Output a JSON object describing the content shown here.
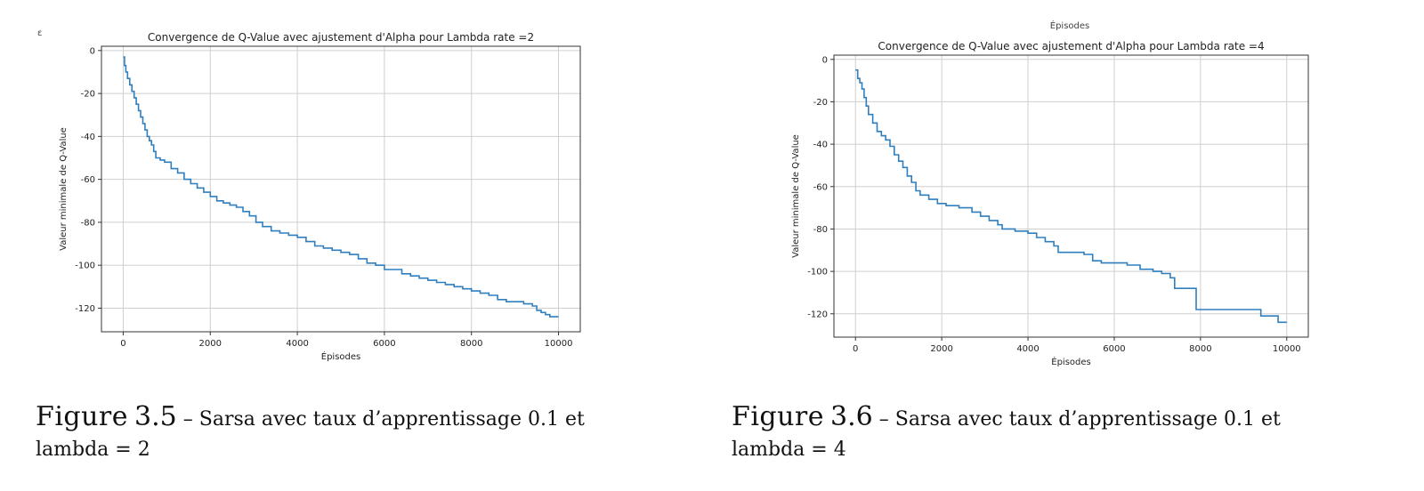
{
  "chart_data": [
    {
      "type": "line",
      "title": "Convergence de Q-Value avec ajustement d'Alpha pour Lambda rate =2",
      "xlabel": "Épisodes",
      "ylabel": "Valeur minimale de Q-Value",
      "xlim": [
        -500,
        10500
      ],
      "ylim": [
        -131,
        2
      ],
      "xticks": [
        0,
        2000,
        4000,
        6000,
        8000,
        10000
      ],
      "yticks": [
        0,
        -20,
        -40,
        -60,
        -80,
        -100,
        -120
      ],
      "grid": true,
      "series_color": "#2f7fbf",
      "series": [
        {
          "x": [
            0,
            30,
            60,
            100,
            150,
            200,
            250,
            300,
            350,
            400,
            450,
            500,
            550,
            600,
            650,
            700,
            750,
            850,
            950,
            1100,
            1250,
            1400,
            1550,
            1700,
            1850,
            2000,
            2150,
            2300,
            2450,
            2600,
            2750,
            2900,
            3050,
            3200,
            3400,
            3600,
            3800,
            4000,
            4200,
            4400,
            4600,
            4800,
            5000,
            5200,
            5400,
            5600,
            5800,
            6000,
            6200,
            6400,
            6600,
            6800,
            7000,
            7200,
            7400,
            7600,
            7800,
            8000,
            8200,
            8400,
            8600,
            8800,
            9000,
            9200,
            9400,
            9500,
            9600,
            9700,
            9800,
            10000
          ],
          "y": [
            -3,
            -7,
            -10,
            -13,
            -16,
            -19,
            -22,
            -25,
            -28,
            -31,
            -34,
            -37,
            -40,
            -42,
            -44,
            -47,
            -50,
            -51,
            -52,
            -55,
            -57,
            -60,
            -62,
            -64,
            -66,
            -68,
            -70,
            -71,
            -72,
            -73,
            -75,
            -77,
            -80,
            -82,
            -84,
            -85,
            -86,
            -87,
            -89,
            -91,
            -92,
            -93,
            -94,
            -95,
            -97,
            -99,
            -100,
            -102,
            -102,
            -104,
            -105,
            -106,
            -107,
            -108,
            -109,
            -110,
            -111,
            -112,
            -113,
            -114,
            -116,
            -117,
            -117,
            -118,
            -119,
            -121,
            -122,
            -123,
            -124,
            -124
          ]
        }
      ]
    },
    {
      "type": "line",
      "title": "Convergence de Q-Value avec ajustement d'Alpha pour Lambda rate =4",
      "xlabel": "Épisodes",
      "ylabel": "Valeur minimale de Q-Value",
      "xlim": [
        -500,
        10500
      ],
      "ylim": [
        -131,
        2
      ],
      "xticks": [
        0,
        2000,
        4000,
        6000,
        8000,
        10000
      ],
      "yticks": [
        0,
        -20,
        -40,
        -60,
        -80,
        -100,
        -120
      ],
      "grid": true,
      "series_color": "#2f7fbf",
      "series": [
        {
          "x": [
            0,
            50,
            100,
            150,
            200,
            250,
            300,
            400,
            500,
            600,
            700,
            800,
            900,
            1000,
            1100,
            1200,
            1300,
            1400,
            1500,
            1700,
            1900,
            2100,
            2400,
            2700,
            2900,
            3100,
            3300,
            3400,
            3700,
            4000,
            4200,
            4400,
            4600,
            4700,
            5000,
            5300,
            5500,
            5700,
            6000,
            6300,
            6600,
            6900,
            7100,
            7300,
            7400,
            7700,
            7900,
            8200,
            8600,
            9000,
            9400,
            9600,
            9800,
            10000
          ],
          "y": [
            -5,
            -9,
            -11,
            -14,
            -18,
            -22,
            -26,
            -30,
            -34,
            -36,
            -38,
            -41,
            -45,
            -48,
            -51,
            -55,
            -58,
            -62,
            -64,
            -66,
            -68,
            -69,
            -70,
            -72,
            -74,
            -76,
            -78,
            -80,
            -81,
            -82,
            -84,
            -86,
            -88,
            -91,
            -91,
            -92,
            -95,
            -96,
            -96,
            -97,
            -99,
            -100,
            -101,
            -103,
            -108,
            -108,
            -118,
            -118,
            -118,
            -118,
            -121,
            -121,
            -124,
            -124
          ]
        }
      ],
      "top_cropped_label": "Épisodes"
    }
  ],
  "captions": [
    {
      "figure_word": "Figure",
      "figure_number": "3.5",
      "dash": "–",
      "text_line1": "Sarsa avec taux d’apprentissage 0.1 et",
      "text_line2": "lambda = 2"
    },
    {
      "figure_word": "Figure",
      "figure_number": "3.6",
      "dash": "–",
      "text_line1": "Sarsa avec taux d’apprentissage 0.1 et",
      "text_line2": "lambda = 4"
    }
  ],
  "left_cropped_glyph": "ε"
}
